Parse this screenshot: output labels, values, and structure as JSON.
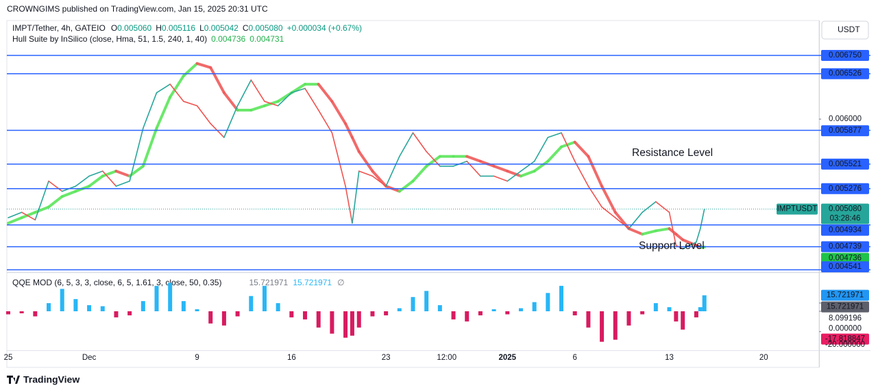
{
  "header": {
    "text": "CROWNGIMS published on TradingView.com, Jan 15, 2025 20:31 UTC"
  },
  "footer": {
    "brand": "TradingView"
  },
  "chart_data": [
    {
      "type": "line",
      "currency": "USDT",
      "legend": [
        {
          "key": "O",
          "value": "0.005060"
        },
        {
          "key": "H",
          "value": "0.005116"
        },
        {
          "key": "L",
          "value": "0.005042"
        },
        {
          "key": "C",
          "value": "0.005080"
        }
      ],
      "change": "+0.000034 (+0.67%)",
      "x": [
        -6,
        -5,
        -4,
        -3,
        -2,
        -1,
        0,
        1,
        2,
        3,
        4,
        5,
        6,
        7,
        8,
        9,
        10,
        11,
        12,
        13,
        14,
        15,
        16,
        17,
        18,
        19,
        19.5,
        20,
        21,
        22,
        23,
        24,
        25,
        26,
        27,
        28,
        29,
        30,
        31,
        32,
        33,
        34,
        35,
        36,
        37,
        38,
        39,
        40,
        41,
        42,
        43,
        43.5,
        44,
        45,
        45.3,
        45.6
      ],
      "series": [
        {
          "name": "IMPT/Tether, 4h, GATEIO",
          "up_color": "#26a69a",
          "down_color": "#ef5350",
          "values": [
            0.005,
            0.00505,
            0.00498,
            0.00535,
            0.00525,
            0.0053,
            0.0054,
            0.00545,
            0.0053,
            0.00535,
            0.0059,
            0.0063,
            0.0064,
            0.0062,
            0.00615,
            0.00595,
            0.0058,
            0.00615,
            0.00645,
            0.0062,
            0.00615,
            0.0063,
            0.00635,
            0.0061,
            0.00585,
            0.0053,
            0.00495,
            0.00545,
            0.0054,
            0.0053,
            0.0056,
            0.00585,
            0.00565,
            0.0055,
            0.0055,
            0.00555,
            0.0054,
            0.0054,
            0.00535,
            0.00545,
            0.00555,
            0.0058,
            0.00585,
            0.00555,
            0.0053,
            0.0051,
            0.005,
            0.0049,
            0.00505,
            0.00515,
            0.00505,
            0.00475,
            0.00472,
            0.00478,
            0.0049,
            0.00508
          ]
        },
        {
          "name": "Hull Suite by InSilico (close, Hma, 51, 1.5, 240, 1, 40)",
          "up_color": "#5ce65c",
          "down_color": "#f05a5a",
          "values": [
            0.00495,
            0.005,
            0.00505,
            0.0051,
            0.0052,
            0.00525,
            0.0053,
            0.0054,
            0.00545,
            0.0054,
            0.0055,
            0.0059,
            0.00625,
            0.0065,
            0.00665,
            0.0066,
            0.0063,
            0.0061,
            0.0061,
            0.00615,
            0.0062,
            0.0063,
            0.0064,
            0.0064,
            0.0062,
            0.00595,
            0.0058,
            0.00565,
            0.00545,
            0.0053,
            0.00525,
            0.00535,
            0.0055,
            0.0056,
            0.0056,
            0.0056,
            0.00555,
            0.0055,
            0.00545,
            0.0054,
            0.00545,
            0.00555,
            0.0057,
            0.00575,
            0.0056,
            0.0053,
            0.00505,
            0.0049,
            0.00485,
            0.00488,
            0.0049,
            0.00485,
            0.0048,
            0.00475,
            0.004731,
            0.004736
          ]
        }
      ],
      "hull_labels": [
        {
          "value": 0.004736,
          "label": "0.004736"
        },
        {
          "value": 0.004731,
          "label": "0.004731"
        }
      ],
      "xlim": [
        -6.1,
        54.1
      ],
      "xticks": [
        {
          "value": -6,
          "label": "25"
        },
        {
          "value": 0,
          "label": "Dec"
        },
        {
          "value": 8,
          "label": "9"
        },
        {
          "value": 15,
          "label": "16"
        },
        {
          "value": 22,
          "label": "23"
        },
        {
          "value": 26.5,
          "label": "12:00"
        },
        {
          "value": 31,
          "label": "2025",
          "bold": true
        },
        {
          "value": 36,
          "label": "6"
        },
        {
          "value": 43,
          "label": "13"
        },
        {
          "value": 50,
          "label": "20"
        }
      ],
      "ylim": [
        0.00452,
        0.0072
      ],
      "log": true,
      "yticks": [
        {
          "value": 0.006,
          "label": "0.006000"
        }
      ],
      "levels_color": "#2962ff",
      "levels": [
        {
          "value": 0.00675,
          "label": "0.006750"
        },
        {
          "value": 0.006526,
          "label": "0.006526"
        },
        {
          "value": 0.005877,
          "label": "0.005877"
        },
        {
          "value": 0.005521,
          "label": "0.005521"
        },
        {
          "value": 0.005276,
          "label": "0.005276"
        },
        {
          "value": 0.004934,
          "label": "0.004934"
        },
        {
          "value": 0.004739,
          "label": "0.004739"
        },
        {
          "value": 0.004541,
          "label": "0.004541"
        }
      ],
      "last_price": {
        "value": 0.00508,
        "label": "0.005080",
        "tag": "IMPTUSDT",
        "countdown": "03:28:46",
        "color": "#26a69a"
      },
      "annotations": [
        "Resistance Level",
        "Support Level"
      ]
    },
    {
      "type": "bar",
      "title": "QQE MOD (6, 5, 3, 3, close, 6, 5, 1.61, 3, close, 50, 0.35)",
      "empty_symbol": "∅",
      "x": [
        -6,
        -5,
        -4,
        -3,
        -2,
        -1,
        0,
        1,
        2,
        3,
        4,
        5,
        6,
        7,
        8,
        9,
        10,
        11,
        12,
        13,
        14,
        15,
        16,
        17,
        18,
        19,
        19.5,
        20,
        21,
        22,
        23,
        24,
        25,
        26,
        27,
        28,
        29,
        30,
        31,
        32,
        33,
        34,
        35,
        36,
        37,
        38,
        39,
        40,
        41,
        42,
        43,
        43.5,
        44,
        45,
        45.3,
        45.6
      ],
      "values": [
        -3,
        -2,
        -5,
        8,
        22,
        12,
        6,
        5,
        -6,
        -4,
        10,
        25,
        28,
        10,
        2,
        -12,
        -14,
        -5,
        15,
        25,
        8,
        -6,
        -8,
        -16,
        -22,
        -26,
        -24,
        -16,
        -5,
        -4,
        3,
        14,
        20,
        6,
        -8,
        -10,
        -4,
        2,
        -3,
        3,
        9,
        18,
        25,
        -4,
        -16,
        -30,
        -28,
        -14,
        -3,
        8,
        4,
        -10,
        -18,
        -6,
        4,
        15.721971
      ],
      "pos_color": "#29b6f6",
      "neg_color": "#d81b60",
      "ylim": [
        -37,
        37
      ],
      "yticks": [
        8.099196,
        {
          "value": 0,
          "label": "0.000000"
        },
        {
          "value": -20,
          "label": "-20.000000"
        }
      ],
      "markers": [
        {
          "value": 15.721971,
          "color": "#2196f3"
        },
        {
          "value": 15.721971,
          "color": "#5d606b"
        },
        {
          "value": -17.818847,
          "color": "#e91e63"
        }
      ]
    }
  ]
}
